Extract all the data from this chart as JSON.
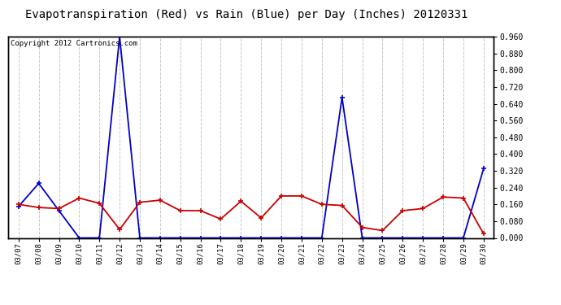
{
  "title": "Evapotranspiration (Red) vs Rain (Blue) per Day (Inches) 20120331",
  "copyright_text": "Copyright 2012 Cartronics.com",
  "dates": [
    "03/07",
    "03/08",
    "03/09",
    "03/10",
    "03/11",
    "03/12",
    "03/13",
    "03/14",
    "03/15",
    "03/16",
    "03/17",
    "03/18",
    "03/19",
    "03/20",
    "03/21",
    "03/22",
    "03/23",
    "03/24",
    "03/25",
    "03/26",
    "03/27",
    "03/28",
    "03/29",
    "03/30"
  ],
  "rain_blue": [
    0.15,
    0.26,
    0.13,
    0.0,
    0.0,
    0.96,
    0.0,
    0.0,
    0.0,
    0.0,
    0.0,
    0.0,
    0.0,
    0.0,
    0.0,
    0.0,
    0.67,
    0.0,
    0.0,
    0.0,
    0.0,
    0.0,
    0.0,
    0.33
  ],
  "et_red": [
    0.16,
    0.145,
    0.14,
    0.19,
    0.165,
    0.04,
    0.17,
    0.18,
    0.13,
    0.13,
    0.09,
    0.175,
    0.095,
    0.2,
    0.2,
    0.16,
    0.155,
    0.05,
    0.035,
    0.13,
    0.14,
    0.195,
    0.19,
    0.02
  ],
  "ylim": [
    0.0,
    0.96
  ],
  "yticks": [
    0.0,
    0.08,
    0.16,
    0.24,
    0.32,
    0.4,
    0.48,
    0.56,
    0.64,
    0.72,
    0.8,
    0.88,
    0.96
  ],
  "bg_color": "#ffffff",
  "grid_color": "#c8c8c8",
  "blue_color": "#0000cc",
  "red_color": "#cc0000",
  "title_fontsize": 10,
  "copyright_fontsize": 6.5
}
